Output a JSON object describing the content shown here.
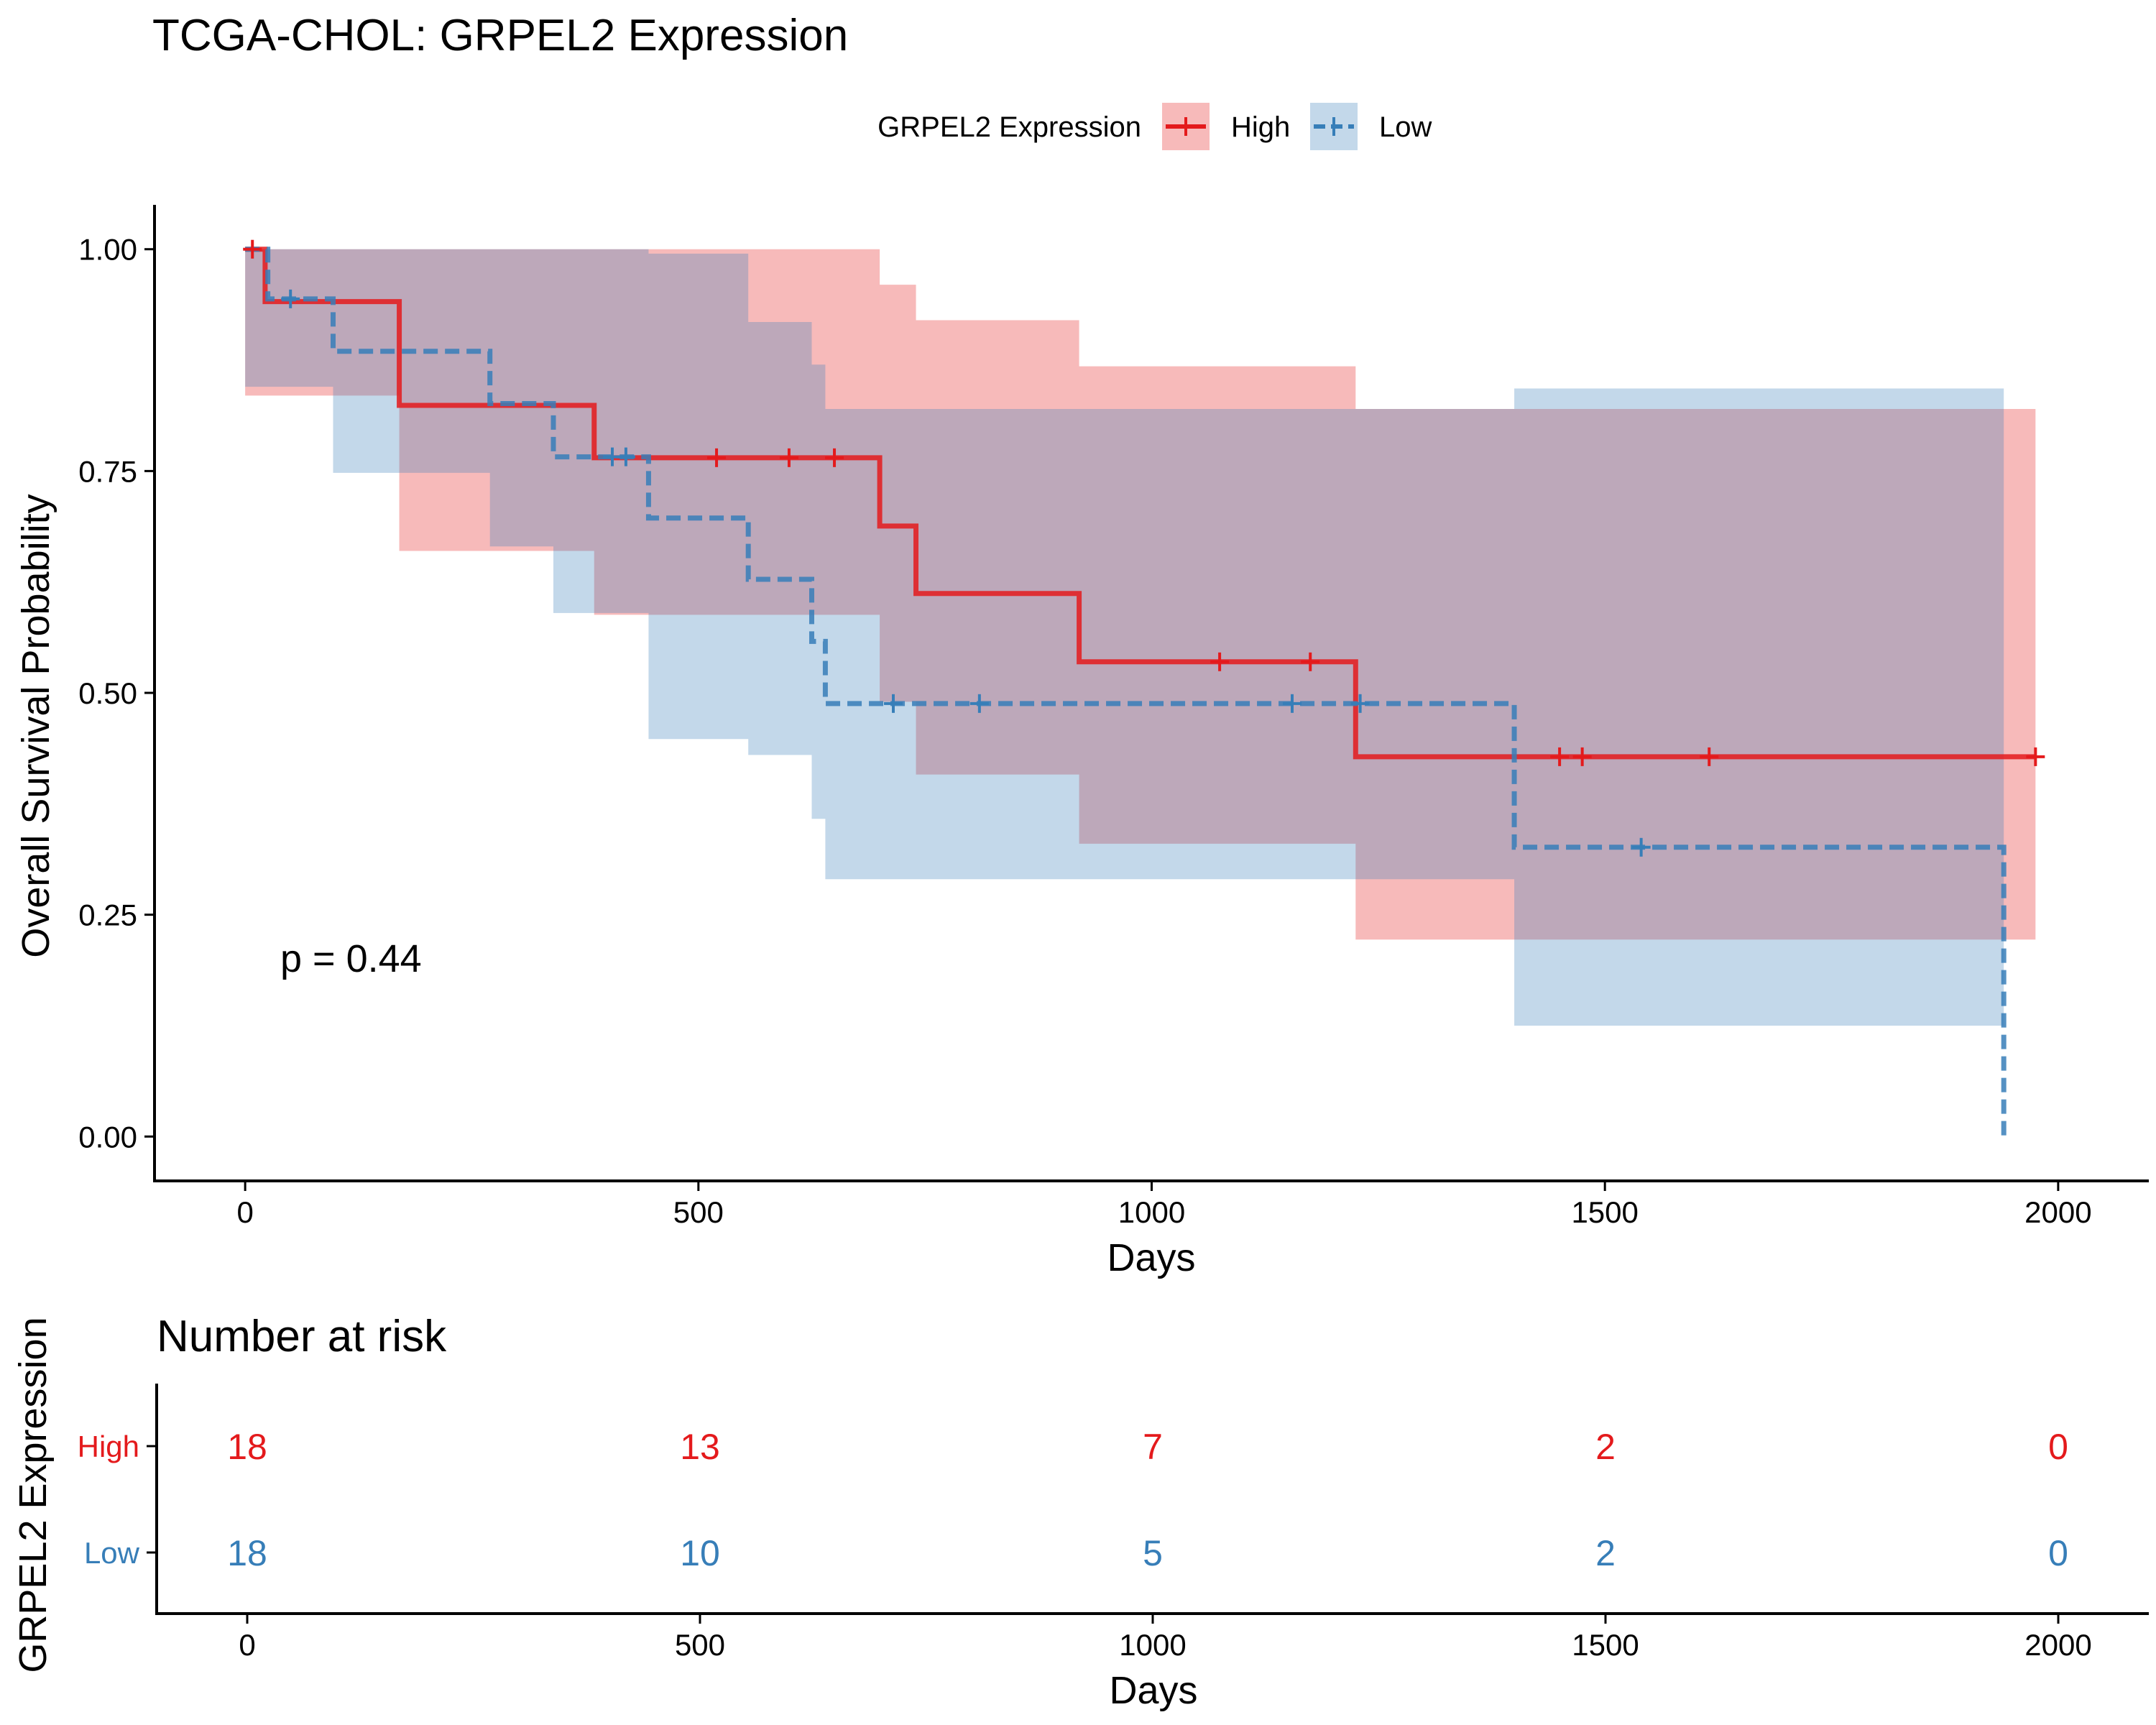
{
  "chart_data": [
    {
      "type": "line",
      "subtype": "kaplan-meier",
      "title": "TCGA-CHOL: GRPEL2 Expression",
      "xlabel": "Days",
      "ylabel": "Overall Survival Probability",
      "xlim": [
        -100,
        2100
      ],
      "ylim": [
        -0.05,
        1.05
      ],
      "xticks": [
        0,
        500,
        1000,
        1500,
        2000
      ],
      "yticks": [
        0.0,
        0.25,
        0.5,
        0.75,
        1.0
      ],
      "xtick_labels": [
        "0",
        "500",
        "1000",
        "1500",
        "2000"
      ],
      "ytick_labels": [
        "0.00",
        "0.25",
        "0.50",
        "0.75",
        "1.00"
      ],
      "grid": false,
      "annotation": "p = 0.44",
      "legend": {
        "title": "GRPEL2 Expression",
        "position": "top",
        "entries": [
          "High",
          "Low"
        ]
      },
      "series": [
        {
          "name": "High",
          "color": "#E41A1C",
          "line_style": "solid",
          "step_x": [
            0,
            22,
            170,
            385,
            700,
            740,
            920,
            1225,
            1975
          ],
          "step_y": [
            1.0,
            0.941,
            0.824,
            0.765,
            0.688,
            0.612,
            0.535,
            0.428,
            0.428
          ],
          "ci_upper": [
            1.0,
            1.0,
            1.0,
            1.0,
            0.96,
            0.92,
            0.868,
            0.82,
            0.82
          ],
          "ci_lower": [
            0.835,
            0.835,
            0.66,
            0.588,
            0.49,
            0.408,
            0.33,
            0.222,
            0.222
          ],
          "censor_x": [
            8,
            520,
            600,
            650,
            1075,
            1175,
            1450,
            1475,
            1615,
            1975
          ],
          "censor_y": [
            1.0,
            0.765,
            0.765,
            0.765,
            0.535,
            0.535,
            0.428,
            0.428,
            0.428,
            0.428
          ]
        },
        {
          "name": "Low",
          "color": "#377EB8",
          "line_style": "dashed",
          "step_x": [
            0,
            25,
            97,
            270,
            340,
            445,
            555,
            625,
            640,
            1400,
            1940
          ],
          "step_y": [
            1.0,
            0.944,
            0.885,
            0.826,
            0.766,
            0.697,
            0.628,
            0.558,
            0.488,
            0.326,
            0.0
          ],
          "ci_upper": [
            1.0,
            1.0,
            1.0,
            1.0,
            1.0,
            0.995,
            0.918,
            0.87,
            0.82,
            0.843,
            0.843
          ],
          "ci_lower": [
            0.845,
            0.845,
            0.748,
            0.665,
            0.59,
            0.448,
            0.43,
            0.358,
            0.29,
            0.125,
            0.125
          ],
          "censor_x": [
            50,
            405,
            420,
            715,
            810,
            1155,
            1230,
            1540
          ],
          "censor_y": [
            0.944,
            0.766,
            0.766,
            0.488,
            0.488,
            0.488,
            0.488,
            0.326
          ]
        }
      ]
    },
    {
      "type": "table",
      "title": "Number at risk",
      "xlabel": "Days",
      "ylabel": "GRPEL2 Expression",
      "xlim": [
        -100,
        2100
      ],
      "xticks": [
        0,
        500,
        1000,
        1500,
        2000
      ],
      "xtick_labels": [
        "0",
        "500",
        "1000",
        "1500",
        "2000"
      ],
      "rows": [
        {
          "name": "High",
          "color": "#E41A1C",
          "values": [
            18,
            13,
            7,
            2,
            0
          ]
        },
        {
          "name": "Low",
          "color": "#377EB8",
          "values": [
            18,
            10,
            5,
            2,
            0
          ]
        }
      ]
    }
  ]
}
